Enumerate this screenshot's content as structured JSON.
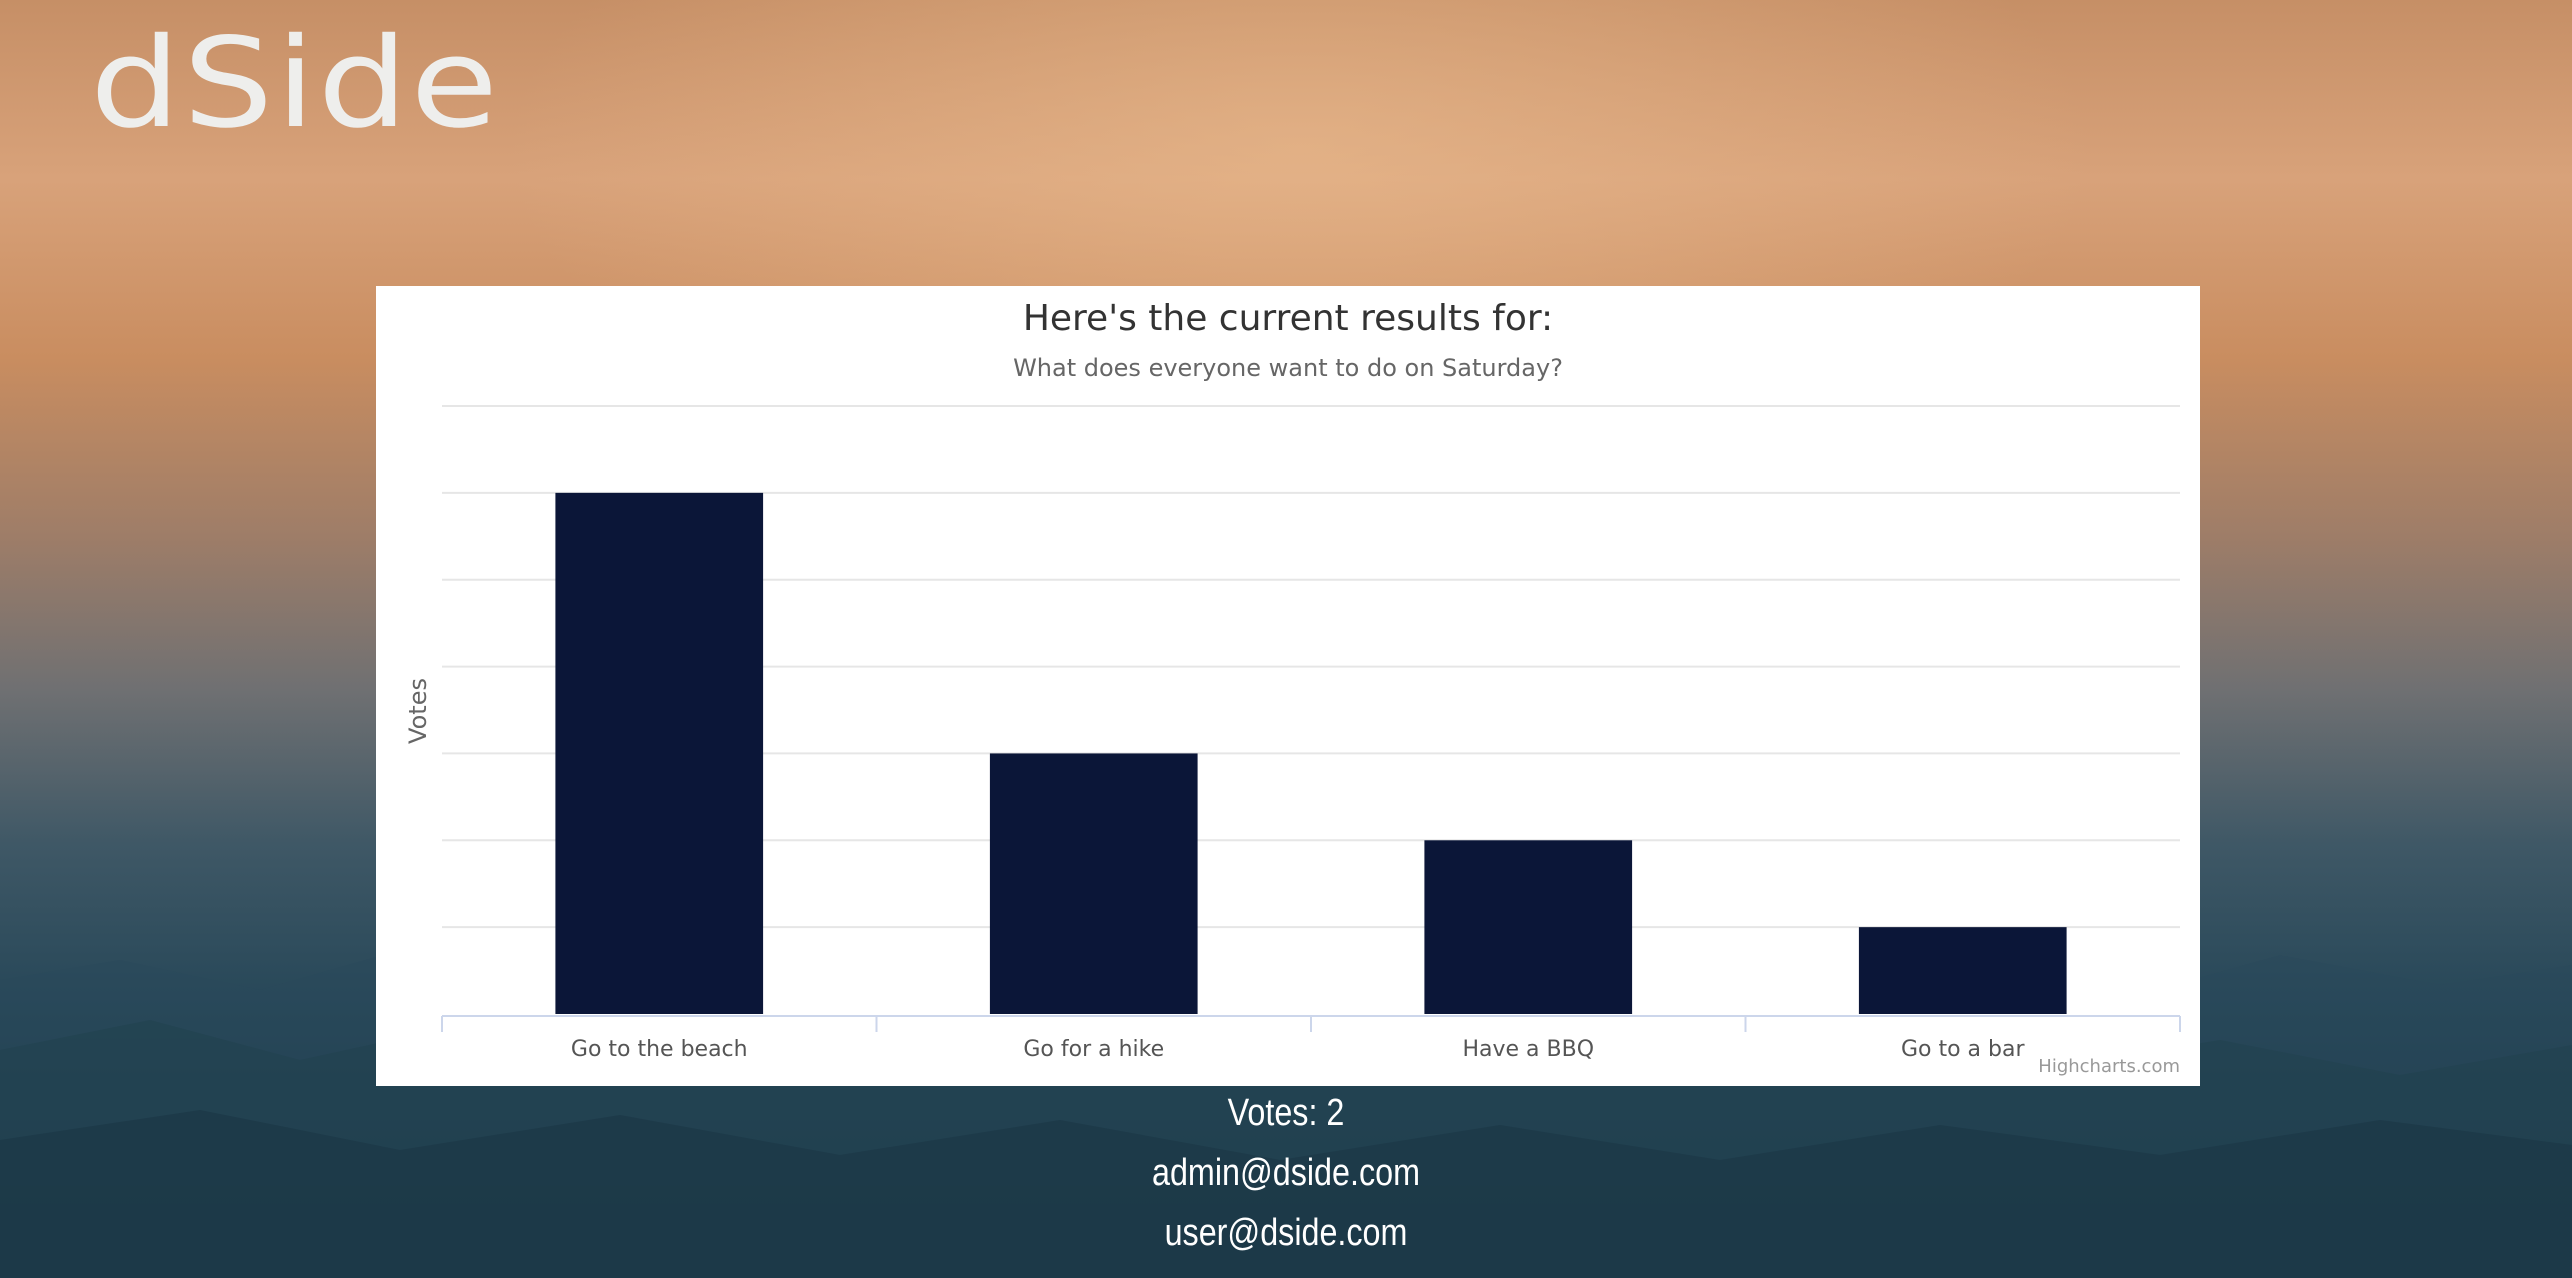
{
  "brand": {
    "logo_text": "dSide",
    "text_color": "#eeeeec"
  },
  "chart_data": {
    "type": "bar",
    "title": "Here's the current results for:",
    "subtitle": "What does everyone want to do on Saturday?",
    "xlabel": "",
    "ylabel": "Votes",
    "categories": [
      "Go to the beach",
      "Go for a hike",
      "Have a BBQ",
      "Go to a bar"
    ],
    "values": [
      6,
      3,
      2,
      1
    ],
    "ylim": [
      0,
      7
    ],
    "grid": true,
    "bar_color": "#0b1638",
    "credits": "Highcharts.com"
  },
  "poll": {
    "votes_text": "Votes: 2",
    "voters": [
      "admin@dside.com",
      "user@dside.com"
    ]
  }
}
